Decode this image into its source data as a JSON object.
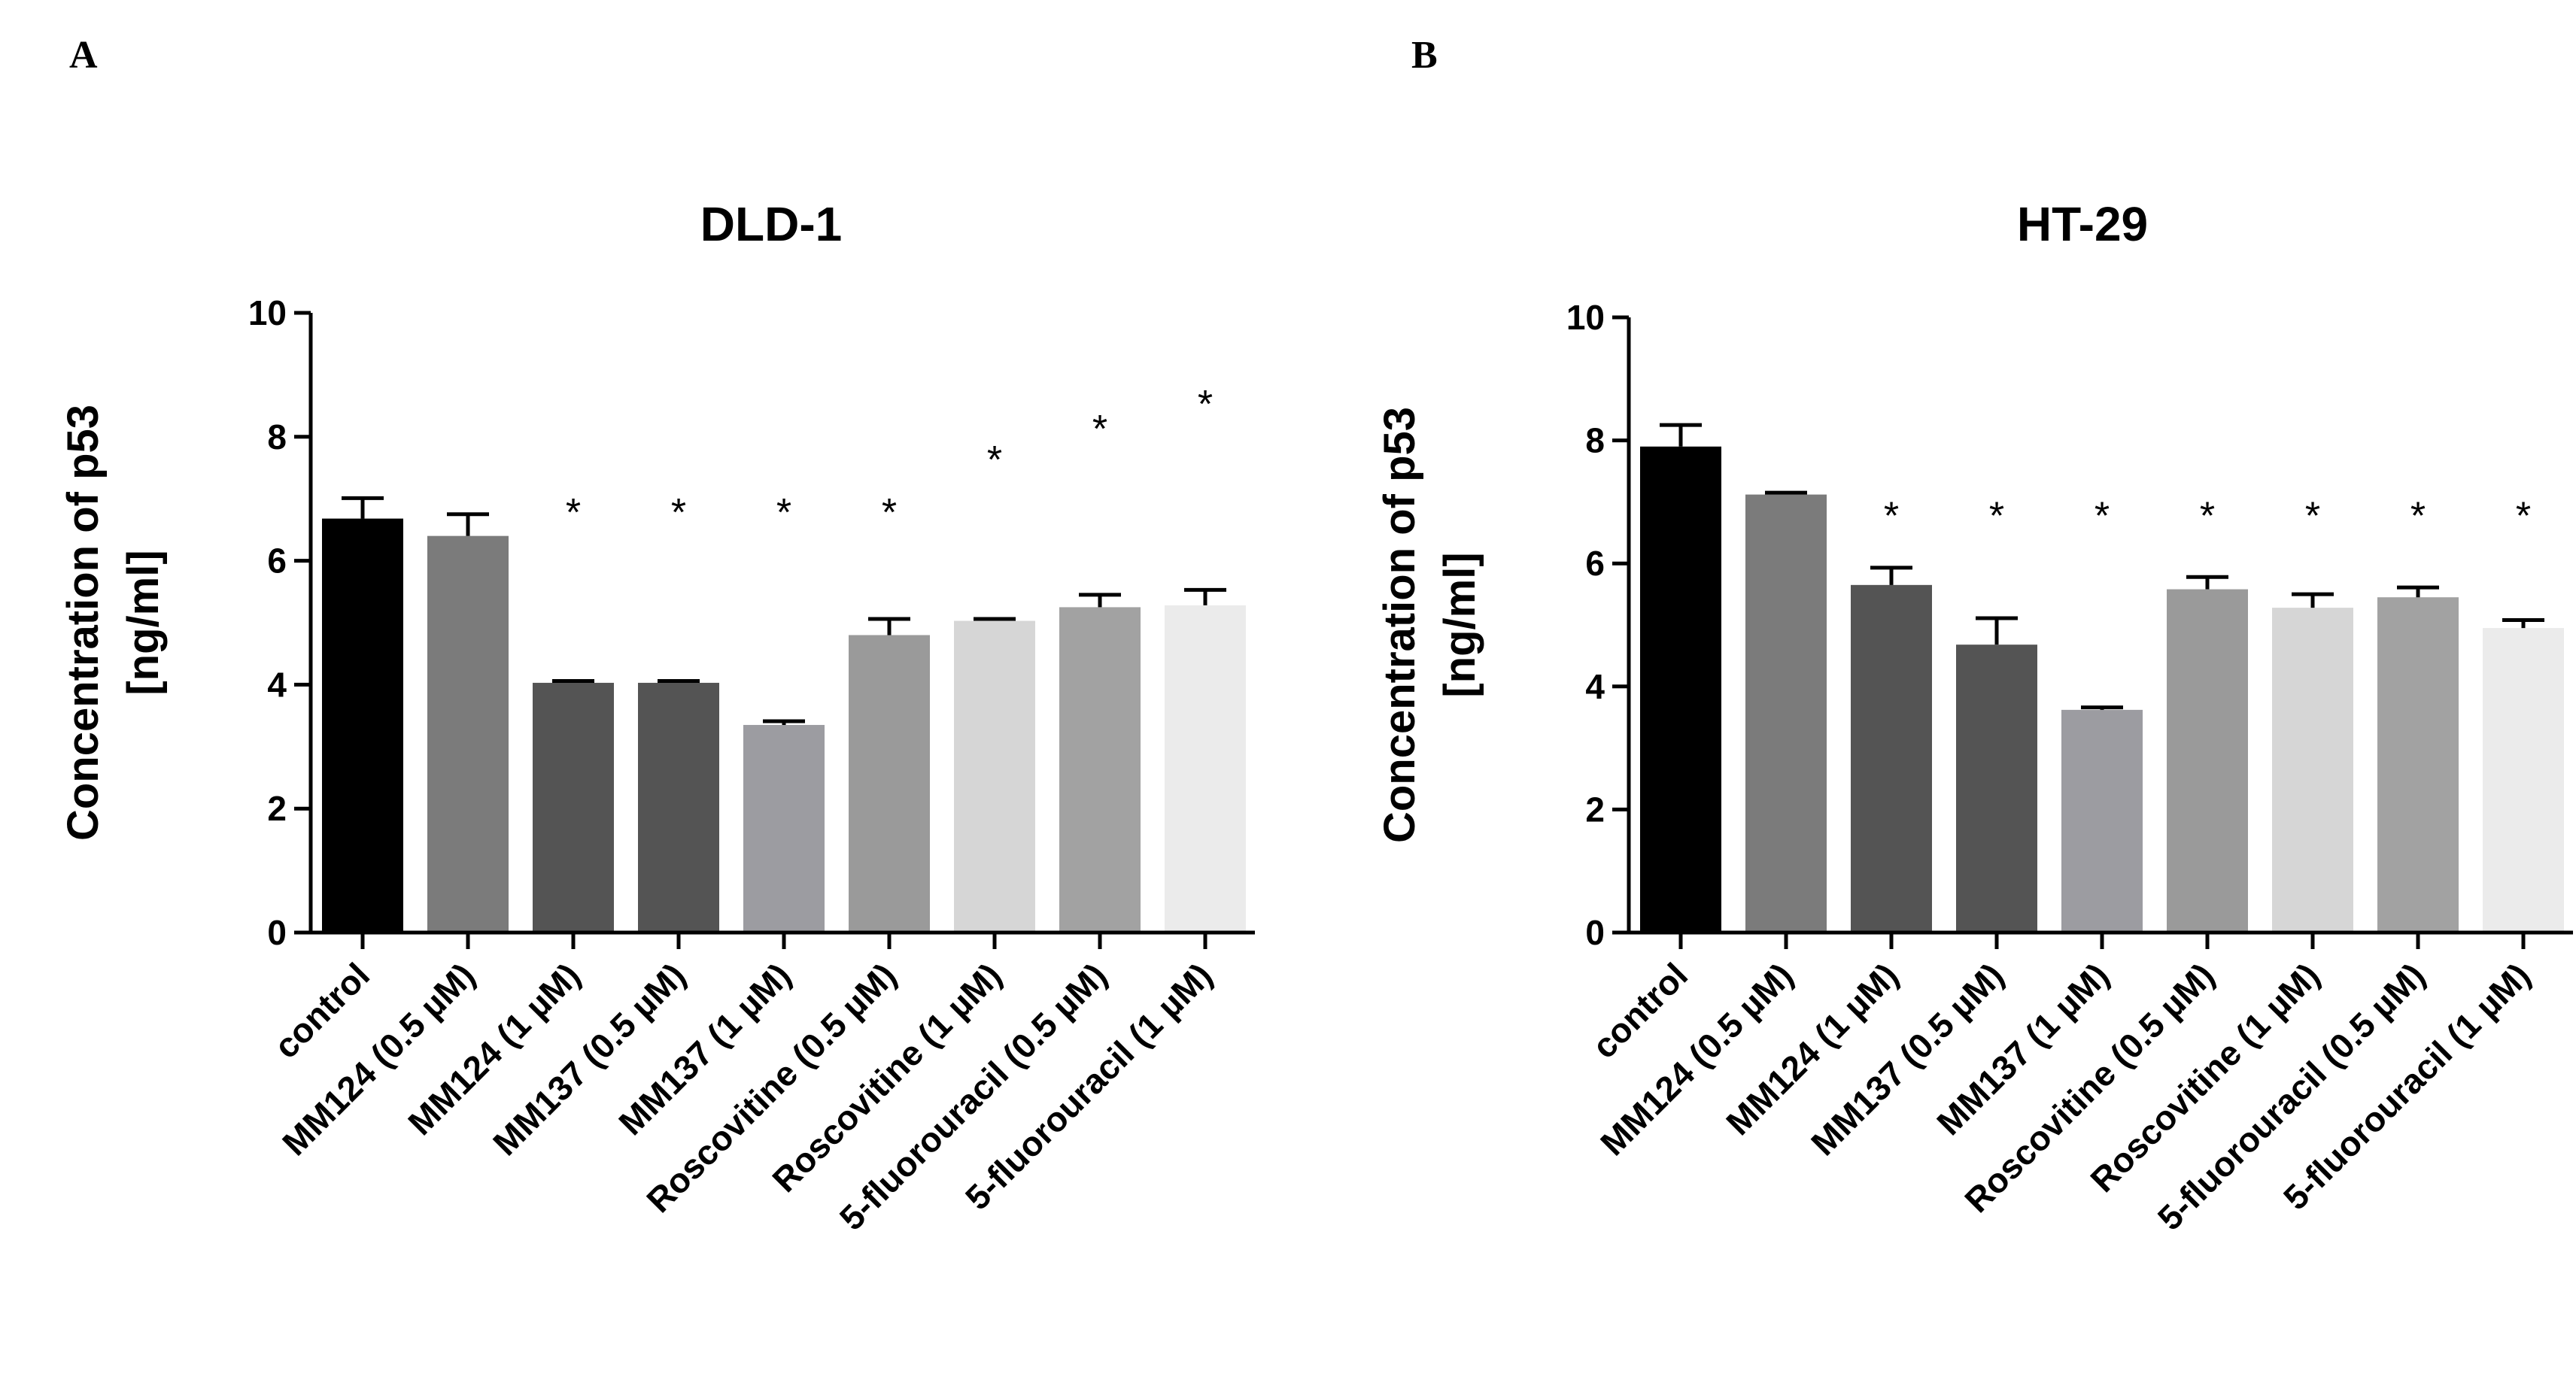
{
  "panels": [
    "A",
    "B"
  ],
  "chart_data": [
    {
      "type": "bar",
      "panel": "A",
      "title": "DLD-1",
      "ylabel": [
        "Concentration of p53",
        "[ng/ml]"
      ],
      "xlabel": "",
      "ylim": [
        0,
        10
      ],
      "yticks": [
        "0",
        "2",
        "4",
        "6",
        "8",
        "10"
      ],
      "categories": [
        "control",
        "MM124 (0.5 µM)",
        "MM124 (1 µM)",
        "MM137 (0.5 µM)",
        "MM137 (1 µM)",
        "Roscovitine (0.5 µM)",
        "Roscovitine (1 µM)",
        "5-fluorouracil  (0.5 µM)",
        "5-fluorouracil  (1 µM)"
      ],
      "values": [
        6.68,
        6.4,
        4.03,
        4.03,
        3.35,
        4.8,
        5.03,
        5.25,
        5.28
      ],
      "errors": [
        0.33,
        0.35,
        0.03,
        0.03,
        0.06,
        0.26,
        0.03,
        0.2,
        0.25
      ],
      "significance": [
        "",
        "",
        "*",
        "*",
        "*",
        "*",
        "*",
        "*",
        "*"
      ],
      "sig_y": [
        null,
        null,
        7.0,
        7.0,
        7.0,
        7.0,
        7.85,
        8.35,
        8.75
      ],
      "colors": [
        "#000000",
        "#7b7b7b",
        "#545454",
        "#545454",
        "#9c9ca1",
        "#9a9a9a",
        "#d6d6d6",
        "#a2a2a2",
        "#ebebeb"
      ]
    },
    {
      "type": "bar",
      "panel": "B",
      "title": "HT-29",
      "ylabel": [
        "Concentration of p53",
        "[ng/ml]"
      ],
      "xlabel": "",
      "ylim": [
        0,
        10
      ],
      "yticks": [
        "0",
        "2",
        "4",
        "6",
        "8",
        "10"
      ],
      "categories": [
        "control",
        "MM124 (0.5 µM)",
        "MM124 (1 µM)",
        "MM137 (0.5 µM)",
        "MM137 (1 µM)",
        "Roscovitine (0.5 µM)",
        "Roscovitine (1 µM)",
        "5-fluorouracil  (0.5 µM)",
        "5-fluorouracil  (1 µM)"
      ],
      "values": [
        7.9,
        7.12,
        5.65,
        4.68,
        3.62,
        5.58,
        5.28,
        5.45,
        4.95
      ],
      "errors": [
        0.35,
        0.03,
        0.28,
        0.43,
        0.04,
        0.2,
        0.22,
        0.16,
        0.13
      ],
      "significance": [
        "",
        "",
        "*",
        "*",
        "*",
        "*",
        "*",
        "*",
        "*"
      ],
      "sig_y": [
        null,
        null,
        7.0,
        7.0,
        7.0,
        7.0,
        7.0,
        7.0,
        7.0
      ],
      "colors": [
        "#000000",
        "#7b7b7b",
        "#545454",
        "#545454",
        "#9c9ca1",
        "#9a9a9a",
        "#d6d6d6",
        "#a2a2a2",
        "#ebebeb"
      ]
    }
  ]
}
